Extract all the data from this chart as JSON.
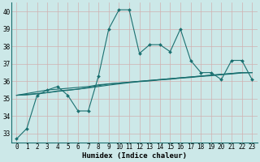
{
  "xlabel": "Humidex (Indice chaleur)",
  "bg_color": "#cce8e8",
  "grid_color": "#c9d9d9",
  "line_color": "#1a7070",
  "xlim": [
    -0.5,
    23.5
  ],
  "ylim": [
    32.5,
    40.5
  ],
  "yticks": [
    33,
    34,
    35,
    36,
    37,
    38,
    39,
    40
  ],
  "xticks": [
    0,
    1,
    2,
    3,
    4,
    5,
    6,
    7,
    8,
    9,
    10,
    11,
    12,
    13,
    14,
    15,
    16,
    17,
    18,
    19,
    20,
    21,
    22,
    23
  ],
  "series": [
    [
      32.7,
      33.3,
      35.2,
      35.5,
      35.7,
      35.2,
      34.3,
      34.3,
      36.3,
      39.0,
      40.1,
      40.1,
      37.6,
      38.1,
      38.1,
      37.7,
      39.0,
      37.2,
      36.5,
      36.5,
      36.1,
      37.2,
      37.2,
      36.1
    ],
    [
      35.2,
      35.3,
      35.4,
      35.5,
      35.55,
      35.6,
      35.65,
      35.7,
      35.8,
      35.85,
      35.9,
      35.95,
      36.0,
      36.05,
      36.1,
      36.15,
      36.2,
      36.25,
      36.3,
      36.35,
      36.4,
      36.45,
      36.5,
      36.5
    ],
    [
      35.2,
      35.25,
      35.3,
      35.35,
      35.45,
      35.5,
      35.55,
      35.65,
      35.75,
      35.85,
      35.9,
      35.95,
      36.0,
      36.05,
      36.1,
      36.15,
      36.2,
      36.25,
      36.3,
      36.35,
      36.4,
      36.45,
      36.5,
      36.5
    ],
    [
      35.2,
      35.22,
      35.28,
      35.35,
      35.42,
      35.48,
      35.55,
      35.62,
      35.7,
      35.78,
      35.85,
      35.92,
      35.98,
      36.02,
      36.08,
      36.12,
      36.18,
      36.22,
      36.28,
      36.32,
      36.38,
      36.42,
      36.48,
      36.5
    ]
  ],
  "has_markers": [
    true,
    false,
    false,
    false
  ],
  "marker": "D",
  "marker_size": 2,
  "linewidths": [
    0.8,
    0.8,
    0.8,
    0.8
  ],
  "tick_fontsize": 5.5,
  "xlabel_fontsize": 6.5
}
